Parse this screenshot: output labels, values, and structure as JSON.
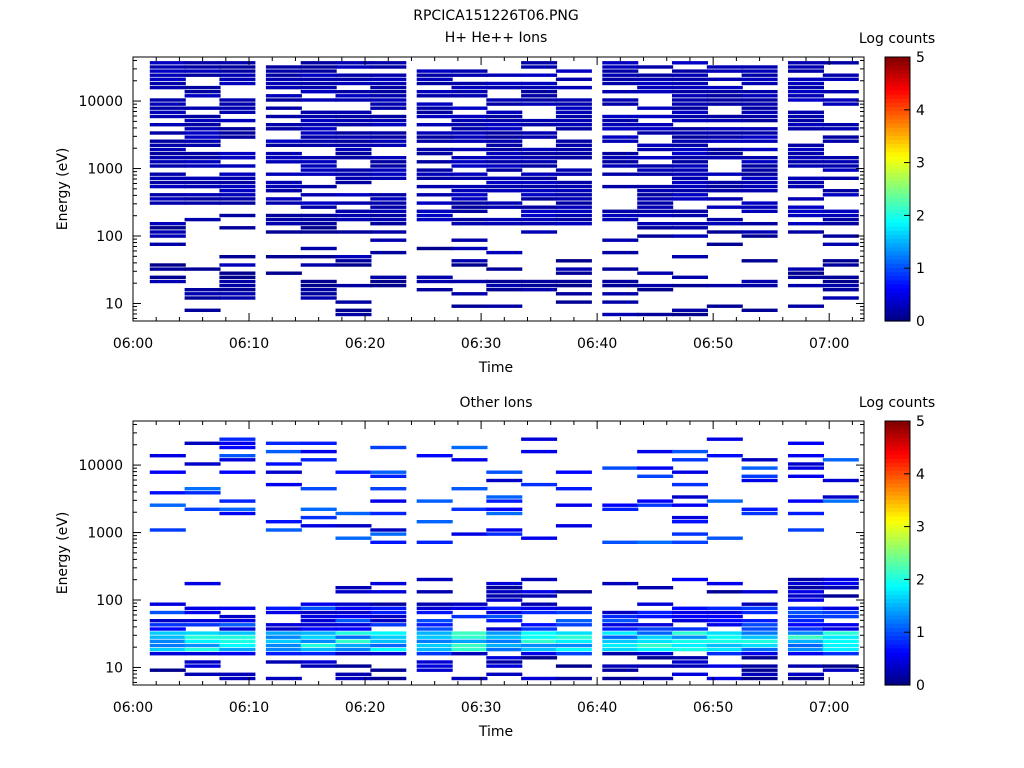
{
  "figure_title": "RPCICA151226T06.PNG",
  "colors": {
    "colormap": [
      "#00007f",
      "#0000ff",
      "#007fff",
      "#00ffff",
      "#7fff7f",
      "#ffff00",
      "#ff7f00",
      "#ff0000",
      "#7f0000"
    ]
  },
  "chart_data": [
    {
      "type": "heatmap",
      "title": "H+ He++ Ions",
      "xlabel": "Time",
      "ylabel": "Energy (eV)",
      "xlim": [
        "06:00",
        "07:03"
      ],
      "x_ticks": [
        "06:00",
        "06:10",
        "06:20",
        "06:30",
        "06:40",
        "06:50",
        "07:00"
      ],
      "y_scale": "log",
      "ylim": [
        5.5,
        45000
      ],
      "y_ticks": [
        "10",
        "100",
        "1000",
        "10000"
      ],
      "colorbar": {
        "label": "Log counts",
        "ticks": [
          "0",
          "1",
          "2",
          "3",
          "4",
          "5"
        ],
        "range": [
          0,
          5
        ]
      },
      "time_bins": [
        "06:03",
        "06:06",
        "06:09",
        "06:13",
        "06:16",
        "06:19",
        "06:22",
        "06:26",
        "06:29",
        "06:32",
        "06:35",
        "06:38",
        "06:42",
        "06:45",
        "06:48",
        "06:51",
        "06:54",
        "06:58",
        "07:01"
      ],
      "seed": 7,
      "bands": [
        {
          "emin": 150,
          "emax": 40000,
          "fill": 0.72,
          "levels": [
            0.15,
            0.35
          ]
        },
        {
          "emin": 30,
          "emax": 150,
          "fill": 0.28,
          "levels": [
            0.05,
            0.3
          ]
        },
        {
          "emin": 15,
          "emax": 30,
          "fill": 0.55,
          "levels": [
            0.05,
            0.25
          ]
        },
        {
          "emin": 6,
          "emax": 15,
          "fill": 0.25,
          "levels": [
            0.05,
            0.25
          ]
        }
      ]
    },
    {
      "type": "heatmap",
      "title": "Other Ions",
      "xlabel": "Time",
      "ylabel": "Energy (eV)",
      "xlim": [
        "06:00",
        "07:03"
      ],
      "x_ticks": [
        "06:00",
        "06:10",
        "06:20",
        "06:30",
        "06:40",
        "06:50",
        "07:00"
      ],
      "y_scale": "log",
      "ylim": [
        5.5,
        45000
      ],
      "y_ticks": [
        "10",
        "100",
        "1000",
        "10000"
      ],
      "colorbar": {
        "label": "Log counts",
        "ticks": [
          "0",
          "1",
          "2",
          "3",
          "4",
          "5"
        ],
        "range": [
          0,
          5
        ]
      },
      "time_bins": [
        "06:03",
        "06:06",
        "06:09",
        "06:13",
        "06:16",
        "06:19",
        "06:22",
        "06:26",
        "06:29",
        "06:32",
        "06:35",
        "06:38",
        "06:42",
        "06:45",
        "06:48",
        "06:51",
        "06:54",
        "06:58",
        "07:01"
      ],
      "seed": 23,
      "bands": [
        {
          "emin": 700,
          "emax": 25000,
          "fill": 0.22,
          "levels": [
            0.3,
            1.2
          ]
        },
        {
          "emin": 80,
          "emax": 200,
          "fill": 0.35,
          "levels": [
            0.1,
            0.6
          ]
        },
        {
          "emin": 35,
          "emax": 80,
          "fill": 0.8,
          "levels": [
            0.3,
            1.1
          ]
        },
        {
          "emin": 18,
          "emax": 35,
          "fill": 1.0,
          "levels": [
            1.1,
            2.2
          ]
        },
        {
          "emin": 14,
          "emax": 18,
          "fill": 0.95,
          "levels": [
            0.2,
            1.0
          ]
        },
        {
          "emin": 6,
          "emax": 14,
          "fill": 0.35,
          "levels": [
            0.05,
            0.5
          ]
        }
      ]
    }
  ]
}
